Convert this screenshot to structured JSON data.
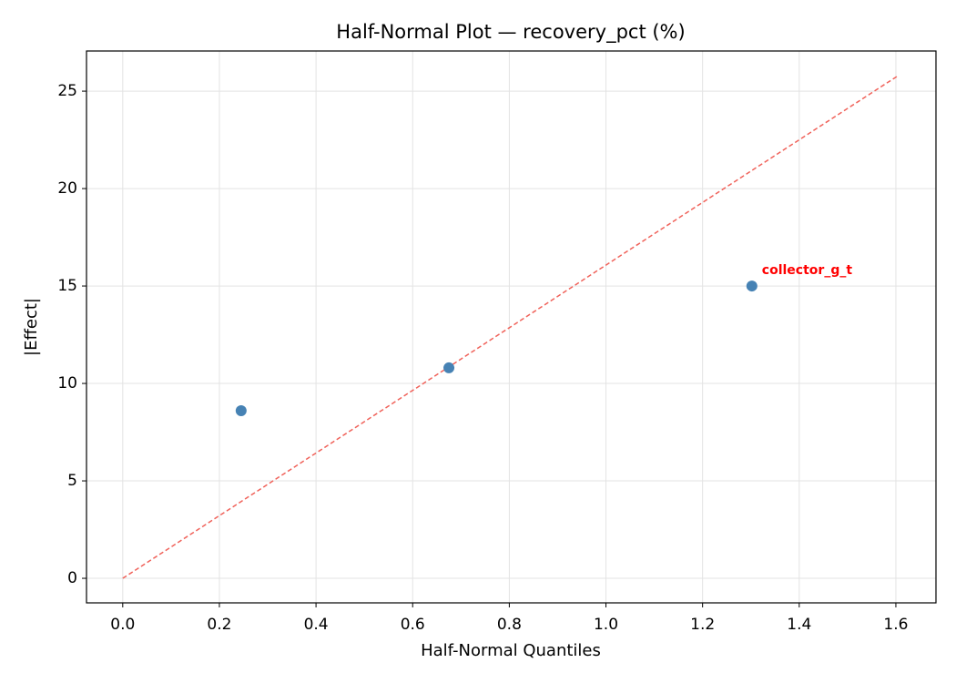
{
  "chart_data": {
    "type": "scatter",
    "title": "Half-Normal Plot — recovery_pct (%)",
    "x_label": "Half-Normal Quantiles",
    "y_label": "|Effect|",
    "series": [
      {
        "name": "effects",
        "color": "#4682b4",
        "x": [
          0.245,
          0.675,
          1.302
        ],
        "values": [
          8.6,
          10.8,
          15.0
        ],
        "point_labels": [
          null,
          null,
          "collector_g_t"
        ],
        "point_label_color": "#ff0000"
      }
    ],
    "reference_line": {
      "x": [
        0,
        1.602
      ],
      "y": [
        0,
        25.75
      ],
      "color": "#f0625a",
      "style": "dashed"
    },
    "xlim": [
      -0.075,
      1.683
    ],
    "ylim": [
      -1.26,
      27.06
    ],
    "xticks": [
      {
        "value": 0,
        "label": "0.0"
      },
      0.2,
      0.4,
      0.6,
      0.8,
      {
        "value": 1,
        "label": "1.0"
      },
      1.2,
      1.4,
      1.6
    ],
    "yticks": [
      0,
      5,
      10,
      15,
      20,
      25
    ],
    "grid": true
  }
}
